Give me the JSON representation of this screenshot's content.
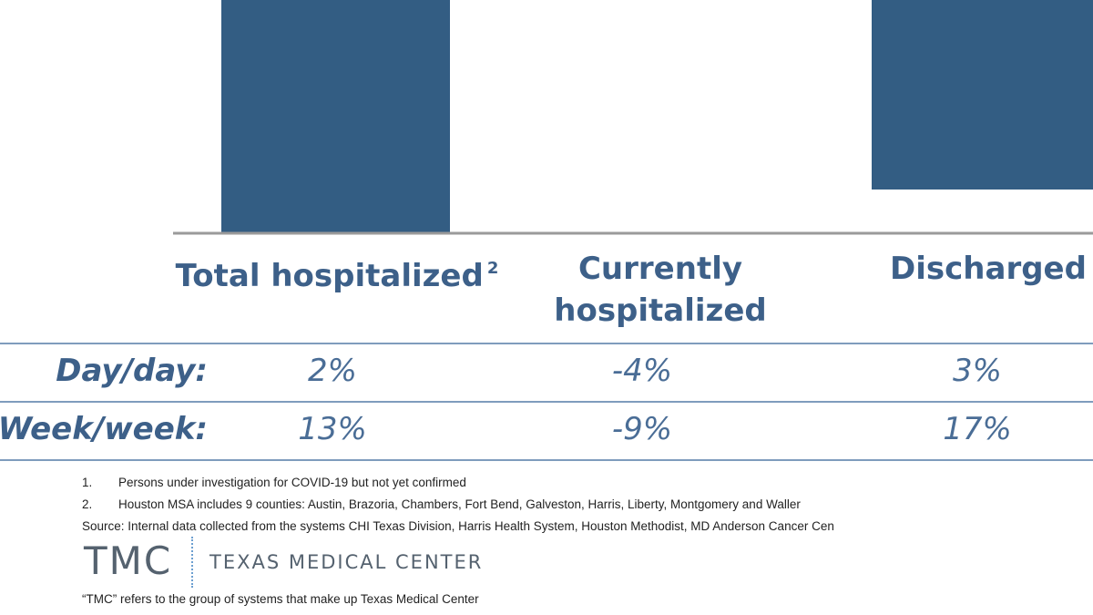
{
  "chart_data": {
    "type": "bar",
    "title": "",
    "categories": [
      "Total hospitalized",
      "Currently hospitalized",
      "Discharged"
    ],
    "category_footnotes": [
      "2",
      "",
      ""
    ],
    "values": [
      null,
      null,
      null
    ],
    "note": "Bars are cropped at the top of the image; only their lower portions are visible, so values cannot be read.",
    "colors": {
      "bar": "#335d83",
      "axis": "#9a9a9a"
    }
  },
  "labels": {
    "cat1": "Total hospitalized",
    "cat1_sup": "2",
    "cat2_line1": "Currently",
    "cat2_line2": "hospitalized",
    "cat3": "Discharged"
  },
  "changes": {
    "rows": [
      {
        "label": "Day/day:",
        "values": [
          "2%",
          "-4%",
          "3%"
        ]
      },
      {
        "label": "Week/week:",
        "values": [
          "13%",
          "-9%",
          "17%"
        ]
      }
    ]
  },
  "footnotes": [
    {
      "num": "1.",
      "text": "Persons under investigation for COVID-19 but not yet confirmed"
    },
    {
      "num": "2.",
      "text": "Houston MSA includes 9 counties: Austin, Brazoria, Chambers, Fort Bend, Galveston, Harris, Liberty, Montgomery and Waller"
    }
  ],
  "source": "Source: Internal data collected from the systems CHI Texas Division, Harris Health System, Houston Methodist, MD Anderson Cancer Cen",
  "logo": {
    "mark": "TMC",
    "name": "TEXAS MEDICAL CENTER",
    "tagline": "“TMC” refers to the group of systems that make up Texas Medical Center"
  }
}
